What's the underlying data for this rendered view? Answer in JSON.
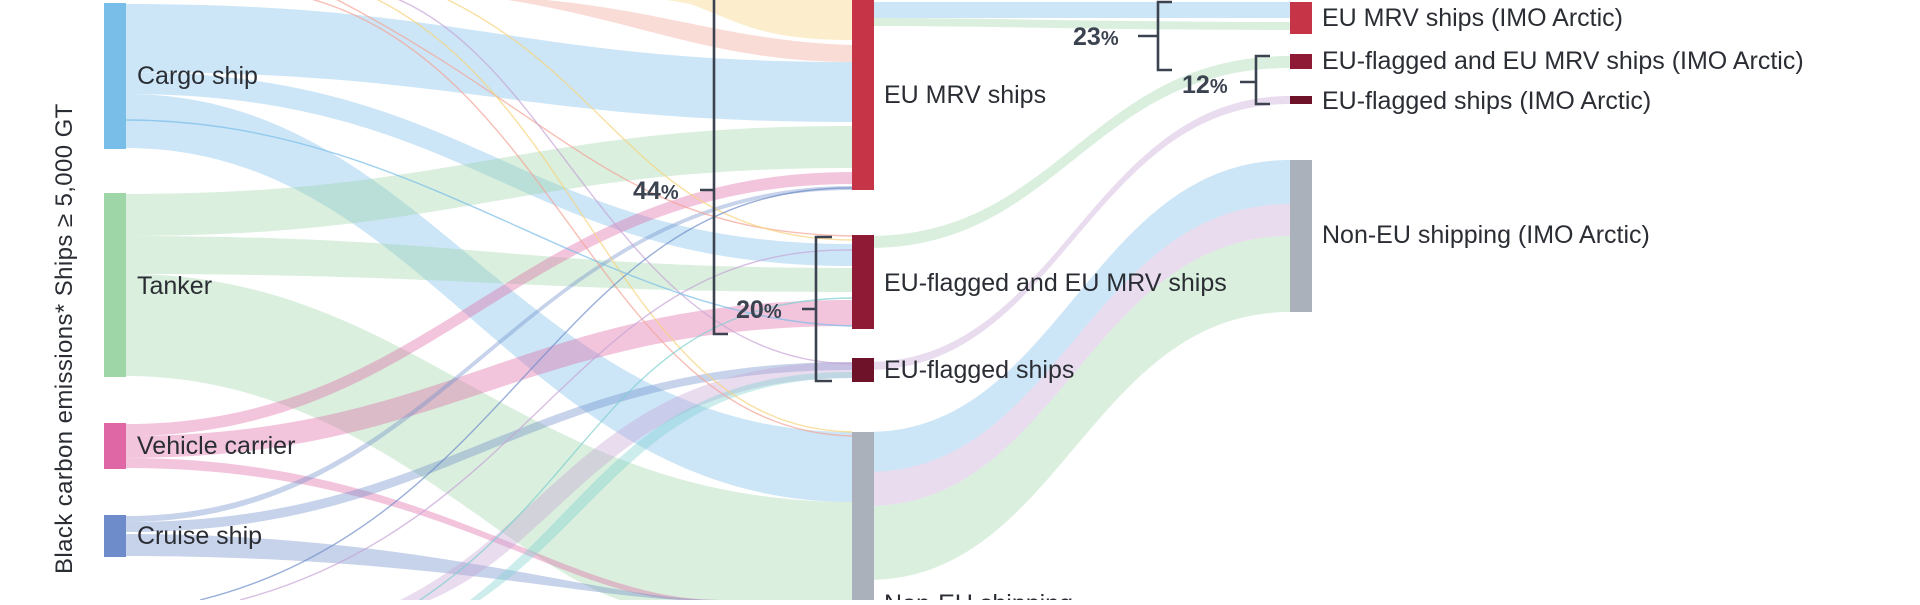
{
  "axis_title": "Black carbon emissions* Ships ≥ 5,000 GT",
  "colors": {
    "cargo": "#79bde9",
    "tanker": "#9ed6a8",
    "vehicle": "#e067a6",
    "cruise": "#6d8cc9",
    "yellow": "#f6d37a",
    "salmon": "#f3a396",
    "purple": "#c6a4d6",
    "teal": "#7ccfcf",
    "eu_mrv": "#c63448",
    "eu_flag_mrv": "#8e1a35",
    "eu_flag": "#6d1228",
    "non_eu": "#aab1bb",
    "bracket": "#3c4350"
  },
  "sources": [
    {
      "id": "cargo",
      "label": "Cargo ship",
      "color_key": "cargo"
    },
    {
      "id": "tanker",
      "label": "Tanker",
      "color_key": "tanker"
    },
    {
      "id": "vehicle",
      "label": "Vehicle carrier",
      "color_key": "vehicle"
    },
    {
      "id": "cruise",
      "label": "Cruise ship",
      "color_key": "cruise"
    }
  ],
  "middle": [
    {
      "id": "eumrv",
      "label": "EU MRV ships",
      "color_key": "eu_mrv"
    },
    {
      "id": "euflagmrv",
      "label": "EU-flagged and EU MRV ships",
      "color_key": "eu_flag_mrv"
    },
    {
      "id": "euflag",
      "label": "EU-flagged ships",
      "color_key": "eu_flag"
    },
    {
      "id": "noneu",
      "label": "Non-EU shipping",
      "color_key": "non_eu"
    }
  ],
  "targets": [
    {
      "id": "eumrv_arctic",
      "label": "EU MRV ships (IMO Arctic)",
      "color_key": "eu_mrv"
    },
    {
      "id": "euflagmrv_arctic",
      "label": "EU-flagged and EU MRV ships (IMO Arctic)",
      "color_key": "eu_flag_mrv"
    },
    {
      "id": "euflag_arctic",
      "label": "EU-flagged ships (IMO Arctic)",
      "color_key": "eu_flag"
    },
    {
      "id": "noneu_arctic",
      "label": "Non-EU shipping (IMO Arctic)",
      "color_key": "non_eu"
    }
  ],
  "shares": [
    {
      "id": "share_44",
      "value": "44",
      "unit": "%"
    },
    {
      "id": "share_20",
      "value": "20",
      "unit": "%"
    },
    {
      "id": "share_23",
      "value": "23",
      "unit": "%"
    },
    {
      "id": "share_12",
      "value": "12",
      "unit": "%"
    }
  ]
}
